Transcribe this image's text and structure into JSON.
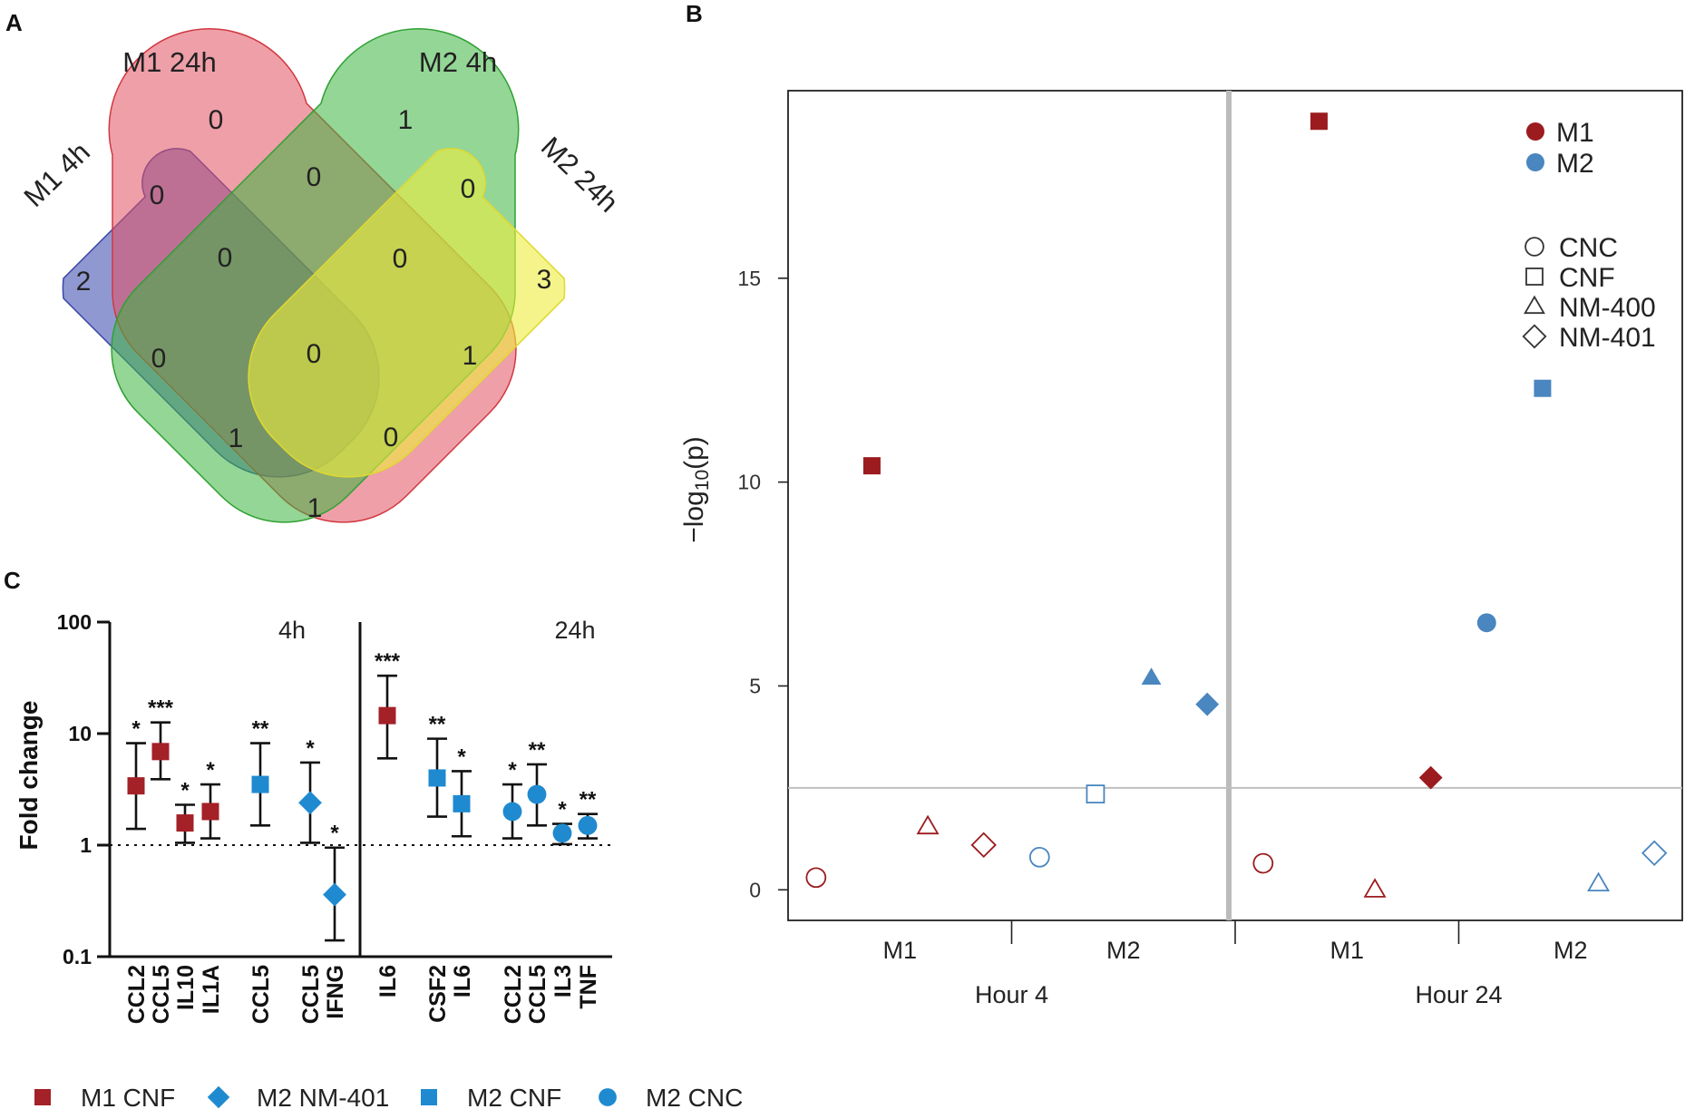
{
  "panels": {
    "a": "A",
    "b": "B",
    "c": "C"
  },
  "chart_data": [
    {
      "type": "venn",
      "sets": [
        "M1 4h",
        "M1 24h",
        "M2 4h",
        "M2 24h"
      ],
      "colors": {
        "M1 4h": "#4654b4",
        "M1 24h": "#e15060",
        "M2 4h": "#3cb440",
        "M2 24h": "#ecec3c"
      },
      "regions": [
        {
          "sets": [
            "M1 4h"
          ],
          "count": 2
        },
        {
          "sets": [
            "M1 24h"
          ],
          "count": 0
        },
        {
          "sets": [
            "M2 4h"
          ],
          "count": 1
        },
        {
          "sets": [
            "M2 24h"
          ],
          "count": 3
        },
        {
          "sets": [
            "M1 4h",
            "M1 24h"
          ],
          "count": 0
        },
        {
          "sets": [
            "M1 24h",
            "M2 4h"
          ],
          "count": 0
        },
        {
          "sets": [
            "M2 4h",
            "M2 24h"
          ],
          "count": 0
        },
        {
          "sets": [
            "M1 4h",
            "M1 24h",
            "M2 4h"
          ],
          "count": 0
        },
        {
          "sets": [
            "M1 24h",
            "M2 4h",
            "M2 24h"
          ],
          "count": 0
        },
        {
          "sets": [
            "M1 4h",
            "M2 4h"
          ],
          "count": 0
        },
        {
          "sets": [
            "M1 24h",
            "M2 24h"
          ],
          "count": 1
        },
        {
          "sets": [
            "M1 4h",
            "M1 24h",
            "M2 4h",
            "M2 24h"
          ],
          "count": 0
        },
        {
          "sets": [
            "M1 4h",
            "M2 4h",
            "M2 24h"
          ],
          "count": 1
        },
        {
          "sets": [
            "M1 4h",
            "M1 24h",
            "M2 24h"
          ],
          "count": 0
        },
        {
          "sets": [
            "M1 4h",
            "M2 24h"
          ],
          "count": 1
        }
      ]
    },
    {
      "type": "scatter",
      "ylabel_prefix": "−log",
      "ylabel_sub": "10",
      "ylabel_suffix": "(p)",
      "ylim": [
        -0.75,
        19.6
      ],
      "yticks": [
        0,
        5,
        10,
        15
      ],
      "threshold": 2.5,
      "groups": [
        {
          "hour": "Hour 4",
          "cells": [
            "M1",
            "M2"
          ]
        },
        {
          "hour": "Hour 24",
          "cells": [
            "M1",
            "M2"
          ]
        }
      ],
      "materials": [
        "CNC",
        "CNF",
        "NM-400",
        "NM-401"
      ],
      "cell_colors": {
        "M1": "#9b1b1e",
        "M2": "#4a86bf"
      },
      "legend_cells": [
        "M1",
        "M2"
      ],
      "legend_materials": [
        "CNC",
        "CNF",
        "NM-400",
        "NM-401"
      ],
      "points": [
        {
          "hour": "Hour 4",
          "cell": "M1",
          "material": "CNC",
          "value": 0.3,
          "filled": false
        },
        {
          "hour": "Hour 4",
          "cell": "M1",
          "material": "CNF",
          "value": 10.4,
          "filled": true
        },
        {
          "hour": "Hour 4",
          "cell": "M1",
          "material": "NM-400",
          "value": 1.55,
          "filled": false
        },
        {
          "hour": "Hour 4",
          "cell": "M1",
          "material": "NM-401",
          "value": 1.1,
          "filled": false
        },
        {
          "hour": "Hour 4",
          "cell": "M2",
          "material": "CNC",
          "value": 0.8,
          "filled": false
        },
        {
          "hour": "Hour 4",
          "cell": "M2",
          "material": "CNF",
          "value": 2.35,
          "filled": false
        },
        {
          "hour": "Hour 4",
          "cell": "M2",
          "material": "NM-400",
          "value": 5.2,
          "filled": true
        },
        {
          "hour": "Hour 4",
          "cell": "M2",
          "material": "NM-401",
          "value": 4.55,
          "filled": true
        },
        {
          "hour": "Hour 24",
          "cell": "M1",
          "material": "CNC",
          "value": 0.65,
          "filled": false
        },
        {
          "hour": "Hour 24",
          "cell": "M1",
          "material": "CNF",
          "value": 18.85,
          "filled": true
        },
        {
          "hour": "Hour 24",
          "cell": "M1",
          "material": "NM-400",
          "value": 0.0,
          "filled": false
        },
        {
          "hour": "Hour 24",
          "cell": "M1",
          "material": "NM-401",
          "value": 2.75,
          "filled": true
        },
        {
          "hour": "Hour 24",
          "cell": "M2",
          "material": "CNC",
          "value": 6.55,
          "filled": true
        },
        {
          "hour": "Hour 24",
          "cell": "M2",
          "material": "CNF",
          "value": 12.3,
          "filled": true
        },
        {
          "hour": "Hour 24",
          "cell": "M2",
          "material": "NM-400",
          "value": 0.15,
          "filled": false
        },
        {
          "hour": "Hour 24",
          "cell": "M2",
          "material": "NM-401",
          "value": 0.9,
          "filled": false
        }
      ]
    },
    {
      "type": "errorbar",
      "ylabel": "Fold change",
      "yscale": "log",
      "ylim": [
        0.1,
        100
      ],
      "yticks": [
        {
          "value": 0.1,
          "label": "0.1"
        },
        {
          "value": 1,
          "label": "1"
        },
        {
          "value": 10,
          "label": "10"
        },
        {
          "value": 100,
          "label": "100"
        }
      ],
      "reference_line": 1,
      "panels": [
        "4h",
        "24h"
      ],
      "legend": [
        {
          "label": "M1 CNF",
          "marker": "square",
          "color": "#a32127"
        },
        {
          "label": "M2 NM-401",
          "marker": "diamond",
          "color": "#1f8ad0"
        },
        {
          "label": "M2 CNF",
          "marker": "square",
          "color": "#1f8ad0"
        },
        {
          "label": "M2 CNC",
          "marker": "circle",
          "color": "#1f8ad0"
        }
      ],
      "points": [
        {
          "panel": "4h",
          "gene": "CCL2",
          "series": "M1 CNF",
          "value": 3.4,
          "low": 1.4,
          "high": 8.2,
          "sig": "*"
        },
        {
          "panel": "4h",
          "gene": "CCL5",
          "series": "M1 CNF",
          "value": 6.9,
          "low": 3.9,
          "high": 12.6,
          "sig": "***"
        },
        {
          "panel": "4h",
          "gene": "IL10",
          "series": "M1 CNF",
          "value": 1.58,
          "low": 1.05,
          "high": 2.3,
          "sig": "*"
        },
        {
          "panel": "4h",
          "gene": "IL1A",
          "series": "M1 CNF",
          "value": 2.0,
          "low": 1.15,
          "high": 3.5,
          "sig": "*"
        },
        {
          "panel": "4h",
          "gene": "CCL5",
          "series": "M2 CNF",
          "value": 3.5,
          "low": 1.5,
          "high": 8.2,
          "sig": "**"
        },
        {
          "panel": "4h",
          "gene": "CCL5",
          "series": "M2 NM-401",
          "value": 2.4,
          "low": 1.05,
          "high": 5.5,
          "sig": "*"
        },
        {
          "panel": "4h",
          "gene": "IFNG",
          "series": "M2 NM-401",
          "value": 0.36,
          "low": 0.14,
          "high": 0.95,
          "sig": "*"
        },
        {
          "panel": "24h",
          "gene": "IL6",
          "series": "M1 CNF",
          "value": 14.5,
          "low": 6.0,
          "high": 33.0,
          "sig": "***"
        },
        {
          "panel": "24h",
          "gene": "CSF2",
          "series": "M2 CNF",
          "value": 4.0,
          "low": 1.8,
          "high": 9.0,
          "sig": "**"
        },
        {
          "panel": "24h",
          "gene": "IL6",
          "series": "M2 CNF",
          "value": 2.35,
          "low": 1.2,
          "high": 4.6,
          "sig": "*"
        },
        {
          "panel": "24h",
          "gene": "CCL2",
          "series": "M2 CNC",
          "value": 2.0,
          "low": 1.15,
          "high": 3.5,
          "sig": "*"
        },
        {
          "panel": "24h",
          "gene": "CCL5",
          "series": "M2 CNC",
          "value": 2.85,
          "low": 1.5,
          "high": 5.3,
          "sig": "**"
        },
        {
          "panel": "24h",
          "gene": "IL3",
          "series": "M2 CNC",
          "value": 1.28,
          "low": 1.02,
          "high": 1.55,
          "sig": "*"
        },
        {
          "panel": "24h",
          "gene": "TNF",
          "series": "M2 CNC",
          "value": 1.5,
          "low": 1.15,
          "high": 1.9,
          "sig": "**"
        }
      ]
    }
  ]
}
